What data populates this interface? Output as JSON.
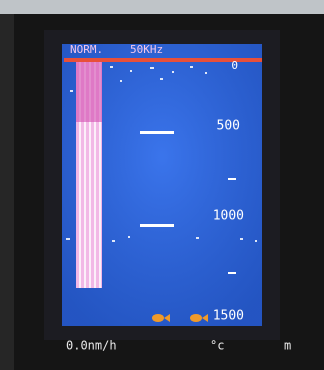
{
  "screen": {
    "mode": "NORM.",
    "frequency": "50KHz",
    "depth_scale": [
      0,
      500,
      1000,
      1500
    ]
  },
  "status_bar": {
    "speed": "0.0nm/h",
    "temperature_unit": "°c",
    "depth_unit": "m"
  }
}
